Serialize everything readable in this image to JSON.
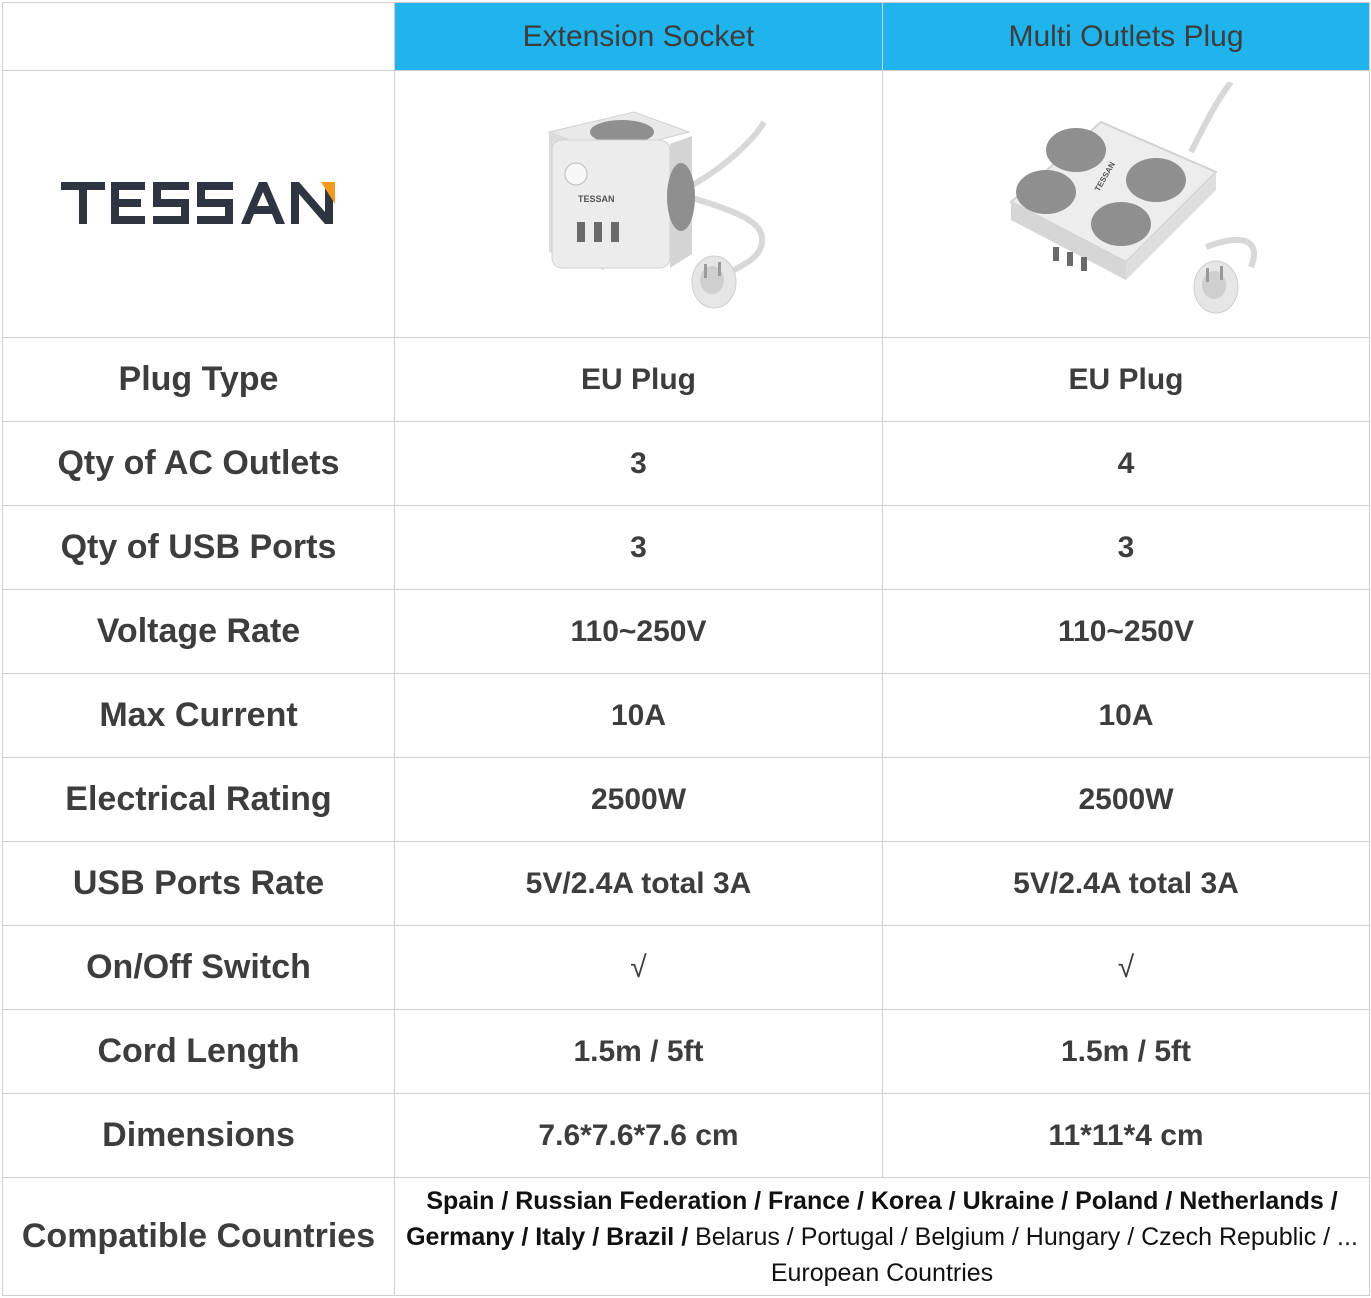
{
  "header": {
    "col1": "Extension Socket",
    "col2": "Multi Outlets Plug"
  },
  "brand": {
    "logo_text": "TESSAN",
    "accent": "#f39a1e",
    "logo_color": "#2f3540"
  },
  "accent_color": "#1fb4ec",
  "products": {
    "col1": {
      "icon": "cube-extension-socket-image"
    },
    "col2": {
      "icon": "square-multi-outlet-image"
    }
  },
  "rows": [
    {
      "label": "Plug Type",
      "col1": "EU Plug",
      "col2": "EU Plug"
    },
    {
      "label": "Qty of AC Outlets",
      "col1": "3",
      "col2": "4"
    },
    {
      "label": "Qty of USB Ports",
      "col1": "3",
      "col2": "3"
    },
    {
      "label": "Voltage Rate",
      "col1": "110~250V",
      "col2": "110~250V"
    },
    {
      "label": "Max Current",
      "col1": "10A",
      "col2": "10A"
    },
    {
      "label": "Electrical Rating",
      "col1": "2500W",
      "col2": "2500W"
    },
    {
      "label": "USB Ports Rate",
      "col1": "5V/2.4A total 3A",
      "col2": "5V/2.4A total 3A"
    },
    {
      "label": "On/Off Switch",
      "col1": "√",
      "col2": "√"
    },
    {
      "label": "Cord Length",
      "col1": "1.5m / 5ft",
      "col2": "1.5m / 5ft"
    },
    {
      "label": "Dimensions",
      "col1": "7.6*7.6*7.6 cm",
      "col2": "11*11*4 cm"
    }
  ],
  "countries": {
    "label": "Compatible Countries",
    "bold": "Spain / Russian Federation / France / Korea / Ukraine / Poland / Netherlands / Germany / Italy / Brazil /",
    "regular": " Belarus / Portugal / Belgium / Hungary / Czech Republic / ... European Countries"
  }
}
